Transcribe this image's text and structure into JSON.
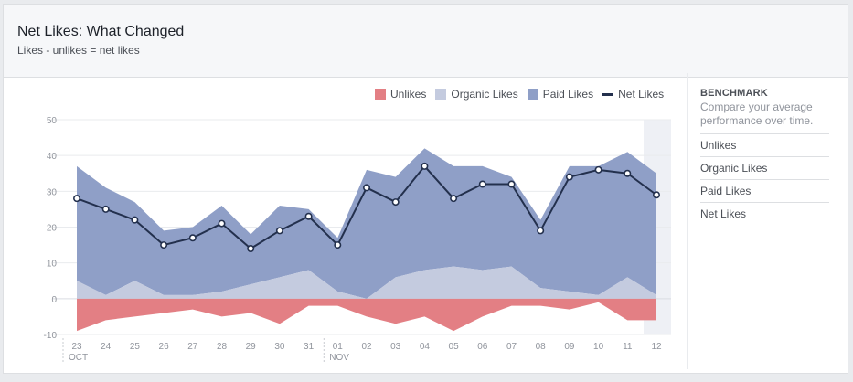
{
  "header": {
    "title": "Net Likes: What Changed",
    "subtitle": "Likes - unlikes = net likes"
  },
  "sidebar": {
    "heading": "BENCHMARK",
    "description": "Compare your average performance over time.",
    "items": [
      "Unlikes",
      "Organic Likes",
      "Paid Likes",
      "Net Likes"
    ]
  },
  "colors": {
    "unlikes": "#e37f84",
    "organic": "#c4cbdf",
    "paid": "#8f9fc7",
    "net": "#23304d",
    "highlight": "#eef0f5"
  },
  "chart_data": {
    "type": "area",
    "title": "Net Likes: What Changed",
    "ylim": [
      -10,
      50
    ],
    "yticks": [
      -10,
      0,
      10,
      20,
      30,
      40,
      50
    ],
    "categories": [
      "23",
      "24",
      "25",
      "26",
      "27",
      "28",
      "29",
      "30",
      "31",
      "01",
      "02",
      "03",
      "04",
      "05",
      "06",
      "07",
      "08",
      "09",
      "10",
      "11",
      "12"
    ],
    "month_labels": [
      {
        "index": 0,
        "label": "OCT"
      },
      {
        "index": 9,
        "label": "NOV"
      }
    ],
    "highlight_index": 20,
    "legend": [
      "Unlikes",
      "Organic Likes",
      "Paid Likes",
      "Net Likes"
    ],
    "series": [
      {
        "name": "Unlikes",
        "values": [
          -9,
          -6,
          -5,
          -4,
          -3,
          -5,
          -4,
          -7,
          -2,
          -2,
          -5,
          -7,
          -5,
          -9,
          -5,
          -2,
          -2,
          -3,
          -1,
          -6,
          -6
        ]
      },
      {
        "name": "Organic Likes",
        "values": [
          5,
          1,
          5,
          1,
          1,
          2,
          4,
          6,
          8,
          2,
          0,
          6,
          8,
          9,
          8,
          9,
          3,
          2,
          1,
          6,
          1
        ]
      },
      {
        "name": "Paid Likes",
        "values": [
          32,
          30,
          22,
          18,
          19,
          24,
          14,
          20,
          17,
          15,
          36,
          28,
          34,
          28,
          29,
          25,
          19,
          35,
          36,
          35,
          34
        ]
      },
      {
        "name": "Net Likes",
        "values": [
          28,
          25,
          22,
          15,
          17,
          21,
          14,
          19,
          23,
          15,
          31,
          27,
          37,
          28,
          32,
          32,
          19,
          34,
          36,
          35,
          29
        ]
      }
    ]
  }
}
